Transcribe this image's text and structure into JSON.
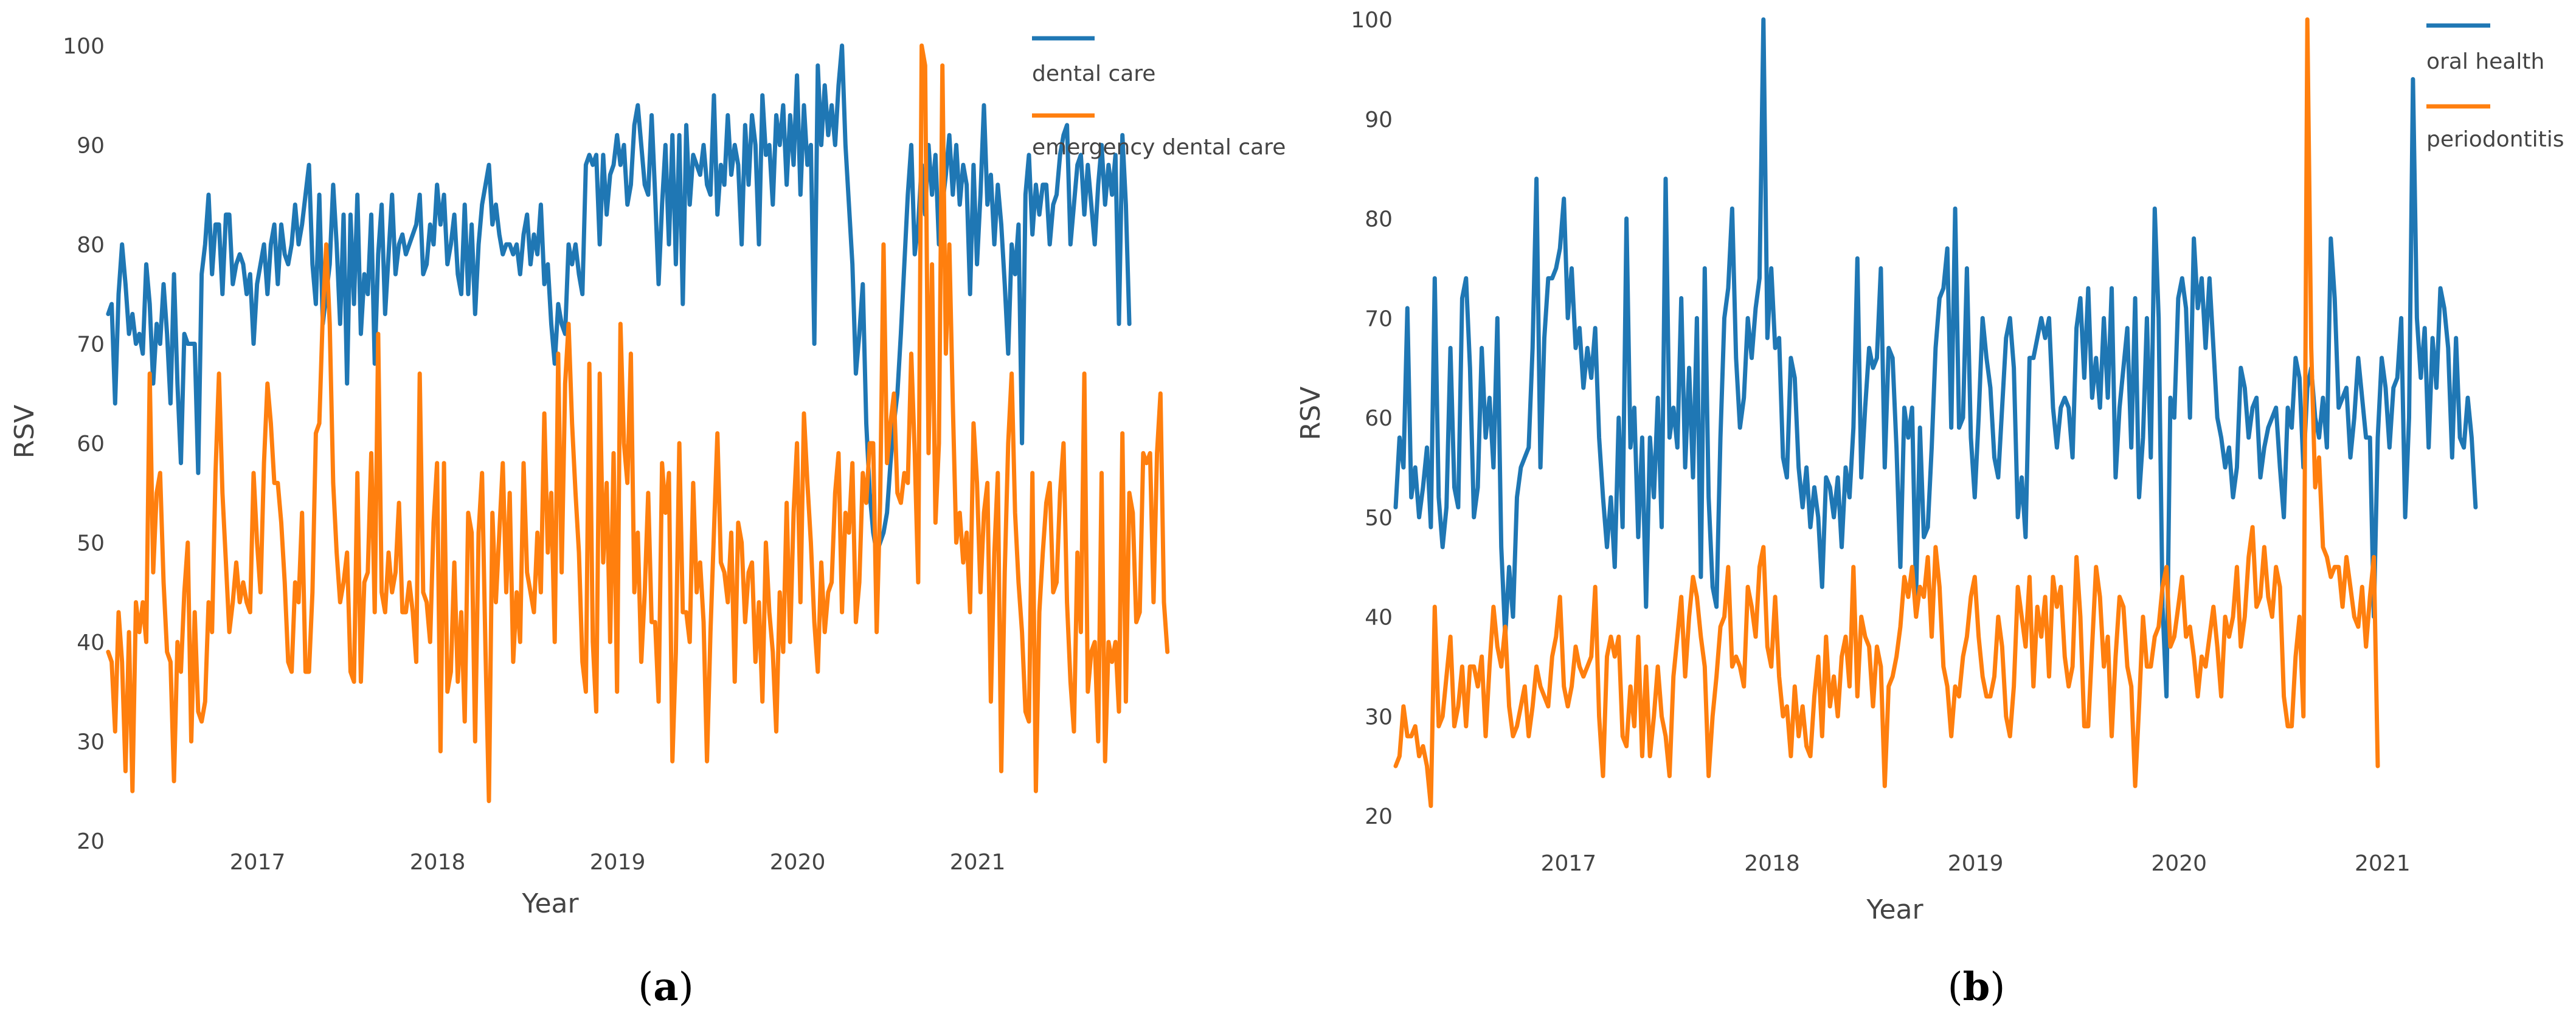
{
  "colors": {
    "blue": "#1f77b4",
    "orange": "#ff7f0e"
  },
  "chart_data": [
    {
      "type": "line",
      "panel_label": "a",
      "xlabel": "Year",
      "ylabel": "RSV",
      "xlim": [
        2016.15,
        2021.15
      ],
      "ylim": [
        20,
        100
      ],
      "xticks": [
        2017,
        2018,
        2019,
        2020,
        2021
      ],
      "yticks": [
        20,
        30,
        40,
        50,
        60,
        70,
        80,
        90,
        100
      ],
      "legend_position": "top-right",
      "series": [
        {
          "name": "dental care",
          "color": "#1f77b4",
          "x_start": 2016.17,
          "x_step": 0.01923,
          "values": [
            73,
            74,
            64,
            75,
            80,
            76,
            71,
            73,
            70,
            71,
            69,
            78,
            74,
            66,
            72,
            70,
            76,
            71,
            64,
            77,
            66,
            58,
            71,
            70,
            70,
            70,
            57,
            77,
            80,
            85,
            77,
            82,
            82,
            75,
            83,
            83,
            76,
            78,
            79,
            78,
            75,
            77,
            70,
            76,
            78,
            80,
            75,
            80,
            82,
            76,
            82,
            79,
            78,
            80,
            84,
            80,
            82,
            85,
            88,
            78,
            74,
            85,
            72,
            75,
            78,
            86,
            80,
            72,
            83,
            66,
            83,
            74,
            85,
            71,
            77,
            75,
            83,
            68,
            79,
            84,
            73,
            79,
            85,
            77,
            80,
            81,
            79,
            80,
            81,
            82,
            85,
            77,
            78,
            82,
            80,
            86,
            82,
            85,
            78,
            80,
            83,
            77,
            75,
            84,
            75,
            82,
            73,
            80,
            84,
            86,
            88,
            82,
            84,
            81,
            79,
            80,
            80,
            79,
            80,
            77,
            81,
            83,
            78,
            81,
            79,
            84,
            76,
            78,
            72,
            68,
            74,
            72,
            71,
            80,
            78,
            80,
            77,
            75,
            88,
            89,
            88,
            89,
            80,
            89,
            83,
            87,
            88,
            91,
            88,
            90,
            84,
            86,
            92,
            94,
            90,
            86,
            85,
            93,
            85,
            76,
            84,
            90,
            80,
            91,
            78,
            91,
            74,
            92,
            84,
            89,
            88,
            87,
            90,
            86,
            85,
            95,
            83,
            88,
            86,
            93,
            87,
            90,
            88,
            80,
            92,
            86,
            93,
            90,
            80,
            95,
            89,
            90,
            84,
            93,
            90,
            94,
            86,
            93,
            88,
            97,
            85,
            94,
            88,
            90,
            70,
            98,
            90,
            96,
            91,
            94,
            90,
            96,
            100,
            90,
            84,
            78,
            67,
            71,
            76,
            62,
            55,
            51,
            49,
            50,
            51,
            53,
            58,
            62,
            65,
            71,
            78,
            85,
            90,
            79,
            82,
            88,
            83,
            90,
            85,
            89,
            80,
            84,
            87,
            91,
            85,
            90,
            84,
            88,
            86,
            75,
            88,
            78,
            85,
            94,
            84,
            87,
            80,
            86,
            82,
            76,
            69,
            80,
            77,
            82,
            60,
            85,
            89,
            81,
            86,
            83,
            86,
            86,
            80,
            84,
            85,
            89,
            91,
            92,
            80,
            84,
            88,
            89,
            83,
            88,
            84,
            80,
            86,
            90,
            84,
            88,
            85,
            89,
            72,
            91,
            84,
            72
          ]
        },
        {
          "name": "emergency dental care",
          "color": "#ff7f0e",
          "x_start": 2016.17,
          "x_step": 0.01923,
          "values": [
            39,
            38,
            31,
            43,
            38,
            27,
            41,
            25,
            44,
            41,
            44,
            40,
            67,
            47,
            55,
            57,
            46,
            39,
            38,
            26,
            40,
            37,
            45,
            50,
            30,
            43,
            33,
            32,
            34,
            44,
            41,
            57,
            67,
            55,
            48,
            41,
            44,
            48,
            44,
            46,
            44,
            43,
            57,
            50,
            45,
            58,
            66,
            62,
            56,
            56,
            52,
            46,
            38,
            37,
            46,
            44,
            53,
            37,
            37,
            45,
            61,
            62,
            73,
            80,
            72,
            56,
            49,
            44,
            46,
            49,
            37,
            36,
            57,
            36,
            46,
            47,
            59,
            43,
            71,
            45,
            43,
            49,
            45,
            47,
            54,
            43,
            43,
            46,
            43,
            38,
            67,
            45,
            44,
            40,
            52,
            58,
            29,
            58,
            35,
            37,
            48,
            36,
            43,
            32,
            53,
            51,
            30,
            51,
            57,
            39,
            24,
            53,
            44,
            51,
            58,
            45,
            55,
            38,
            45,
            40,
            58,
            47,
            45,
            43,
            51,
            45,
            63,
            49,
            55,
            40,
            69,
            47,
            66,
            72,
            62,
            55,
            49,
            38,
            35,
            68,
            40,
            33,
            67,
            48,
            56,
            40,
            59,
            35,
            72,
            60,
            56,
            69,
            45,
            51,
            38,
            45,
            55,
            42,
            42,
            34,
            58,
            53,
            57,
            28,
            39,
            60,
            43,
            43,
            40,
            56,
            45,
            48,
            42,
            28,
            41,
            51,
            61,
            48,
            47,
            44,
            51,
            36,
            52,
            50,
            42,
            47,
            48,
            38,
            44,
            34,
            50,
            43,
            39,
            31,
            45,
            39,
            54,
            40,
            53,
            60,
            44,
            63,
            56,
            50,
            42,
            37,
            48,
            41,
            45,
            46,
            55,
            59,
            43,
            53,
            51,
            58,
            42,
            46,
            57,
            54,
            60,
            60,
            41,
            54,
            80,
            58,
            62,
            65,
            55,
            54,
            57,
            56,
            69,
            59,
            46,
            100,
            98,
            59,
            78,
            52,
            60,
            98,
            69,
            80,
            64,
            50,
            53,
            48,
            51,
            43,
            62,
            56,
            45,
            53,
            56,
            34,
            49,
            57,
            27,
            47,
            60,
            67,
            53,
            46,
            41,
            33,
            32,
            57,
            25,
            43,
            49,
            54,
            56,
            45,
            46,
            55,
            60,
            44,
            36,
            31,
            49,
            41,
            67,
            35,
            39,
            40,
            30,
            57,
            28,
            40,
            38,
            40,
            33,
            61,
            34,
            55,
            53,
            42,
            43,
            59,
            58,
            59,
            44,
            59,
            65,
            44,
            39
          ]
        }
      ]
    },
    {
      "type": "line",
      "panel_label": "b",
      "xlabel": "Year",
      "ylabel": "RSV",
      "xlim": [
        2016.15,
        2021.15
      ],
      "ylim": [
        20,
        100
      ],
      "xticks": [
        2017,
        2018,
        2019,
        2020,
        2021
      ],
      "yticks": [
        20,
        30,
        40,
        50,
        60,
        70,
        80,
        90,
        100
      ],
      "legend_position": "top-right",
      "series": [
        {
          "name": "oral health",
          "color": "#1f77b4",
          "x_start": 2016.15,
          "x_step": 0.01923,
          "values": [
            51,
            58,
            55,
            71,
            52,
            55,
            50,
            53,
            57,
            49,
            74,
            52,
            47,
            51,
            67,
            53,
            51,
            72,
            74,
            65,
            50,
            53,
            67,
            58,
            62,
            55,
            70,
            47,
            38,
            45,
            40,
            52,
            55,
            56,
            57,
            67,
            84,
            55,
            68,
            74,
            74,
            75,
            77,
            82,
            70,
            75,
            67,
            69,
            63,
            67,
            64,
            69,
            58,
            52,
            47,
            52,
            45,
            60,
            49,
            80,
            57,
            61,
            48,
            58,
            41,
            58,
            52,
            62,
            49,
            84,
            58,
            61,
            57,
            72,
            55,
            65,
            54,
            70,
            44,
            75,
            52,
            43,
            41,
            58,
            70,
            73,
            81,
            66,
            59,
            62,
            70,
            66,
            71,
            74,
            100,
            68,
            75,
            67,
            68,
            56,
            54,
            66,
            64,
            55,
            51,
            55,
            49,
            53,
            50,
            43,
            54,
            53,
            50,
            54,
            47,
            55,
            52,
            59,
            76,
            54,
            61,
            67,
            65,
            66,
            75,
            55,
            67,
            66,
            57,
            45,
            61,
            58,
            61,
            42,
            59,
            48,
            49,
            57,
            67,
            72,
            73,
            77,
            59,
            81,
            59,
            60,
            75,
            58,
            52,
            60,
            70,
            66,
            63,
            56,
            54,
            61,
            68,
            70,
            65,
            50,
            54,
            48,
            66,
            66,
            68,
            70,
            68,
            70,
            61,
            57,
            61,
            62,
            61,
            56,
            69,
            72,
            64,
            73,
            62,
            66,
            61,
            70,
            62,
            73,
            54,
            61,
            65,
            69,
            57,
            72,
            52,
            58,
            70,
            56,
            81,
            70,
            41,
            32,
            62,
            60,
            72,
            74,
            71,
            60,
            78,
            71,
            74,
            67,
            74,
            67,
            60,
            58,
            55,
            57,
            52,
            55,
            65,
            63,
            58,
            61,
            62,
            54,
            57,
            59,
            60,
            61,
            55,
            50,
            61,
            59,
            66,
            64,
            55,
            63,
            65,
            60,
            58,
            62,
            57,
            78,
            72,
            61,
            62,
            63,
            56,
            60,
            66,
            62,
            58,
            58,
            40,
            58,
            66,
            63,
            57,
            63,
            64,
            70,
            50,
            60,
            94,
            70,
            64,
            69,
            57,
            68,
            63,
            73,
            71,
            67,
            56,
            68,
            58,
            57,
            62,
            58,
            51
          ]
        },
        {
          "name": "periodontitis",
          "color": "#ff7f0e",
          "x_start": 2016.15,
          "x_step": 0.01923,
          "values": [
            25,
            26,
            31,
            28,
            28,
            29,
            26,
            27,
            25,
            21,
            41,
            29,
            30,
            34,
            38,
            29,
            31,
            35,
            29,
            35,
            35,
            33,
            36,
            28,
            35,
            41,
            37,
            35,
            39,
            31,
            28,
            29,
            31,
            33,
            28,
            31,
            35,
            33,
            32,
            31,
            36,
            38,
            42,
            33,
            31,
            33,
            37,
            35,
            34,
            35,
            36,
            43,
            30,
            24,
            36,
            38,
            36,
            38,
            28,
            27,
            33,
            29,
            38,
            26,
            35,
            26,
            30,
            35,
            30,
            28,
            24,
            34,
            38,
            42,
            34,
            40,
            44,
            42,
            38,
            35,
            24,
            30,
            34,
            39,
            40,
            45,
            35,
            36,
            35,
            33,
            43,
            41,
            38,
            45,
            47,
            37,
            35,
            42,
            34,
            30,
            31,
            26,
            33,
            28,
            31,
            27,
            26,
            32,
            36,
            28,
            38,
            31,
            34,
            30,
            36,
            38,
            33,
            45,
            32,
            40,
            38,
            37,
            31,
            37,
            35,
            23,
            33,
            34,
            36,
            39,
            44,
            42,
            45,
            40,
            43,
            42,
            46,
            38,
            47,
            43,
            35,
            33,
            28,
            33,
            32,
            36,
            38,
            42,
            44,
            38,
            34,
            32,
            32,
            34,
            40,
            37,
            30,
            28,
            33,
            43,
            40,
            37,
            44,
            33,
            41,
            38,
            42,
            34,
            44,
            41,
            43,
            36,
            33,
            35,
            46,
            40,
            29,
            29,
            37,
            45,
            42,
            35,
            38,
            28,
            36,
            42,
            41,
            35,
            33,
            23,
            31,
            40,
            35,
            35,
            38,
            39,
            43,
            45,
            37,
            38,
            41,
            44,
            38,
            39,
            36,
            32,
            36,
            35,
            38,
            41,
            37,
            32,
            40,
            38,
            40,
            45,
            37,
            40,
            46,
            49,
            41,
            42,
            47,
            42,
            40,
            45,
            43,
            32,
            29,
            29,
            36,
            40,
            30,
            100,
            67,
            53,
            56,
            47,
            46,
            44,
            45,
            45,
            41,
            46,
            43,
            40,
            39,
            43,
            37,
            42,
            46,
            25
          ]
        }
      ]
    }
  ]
}
